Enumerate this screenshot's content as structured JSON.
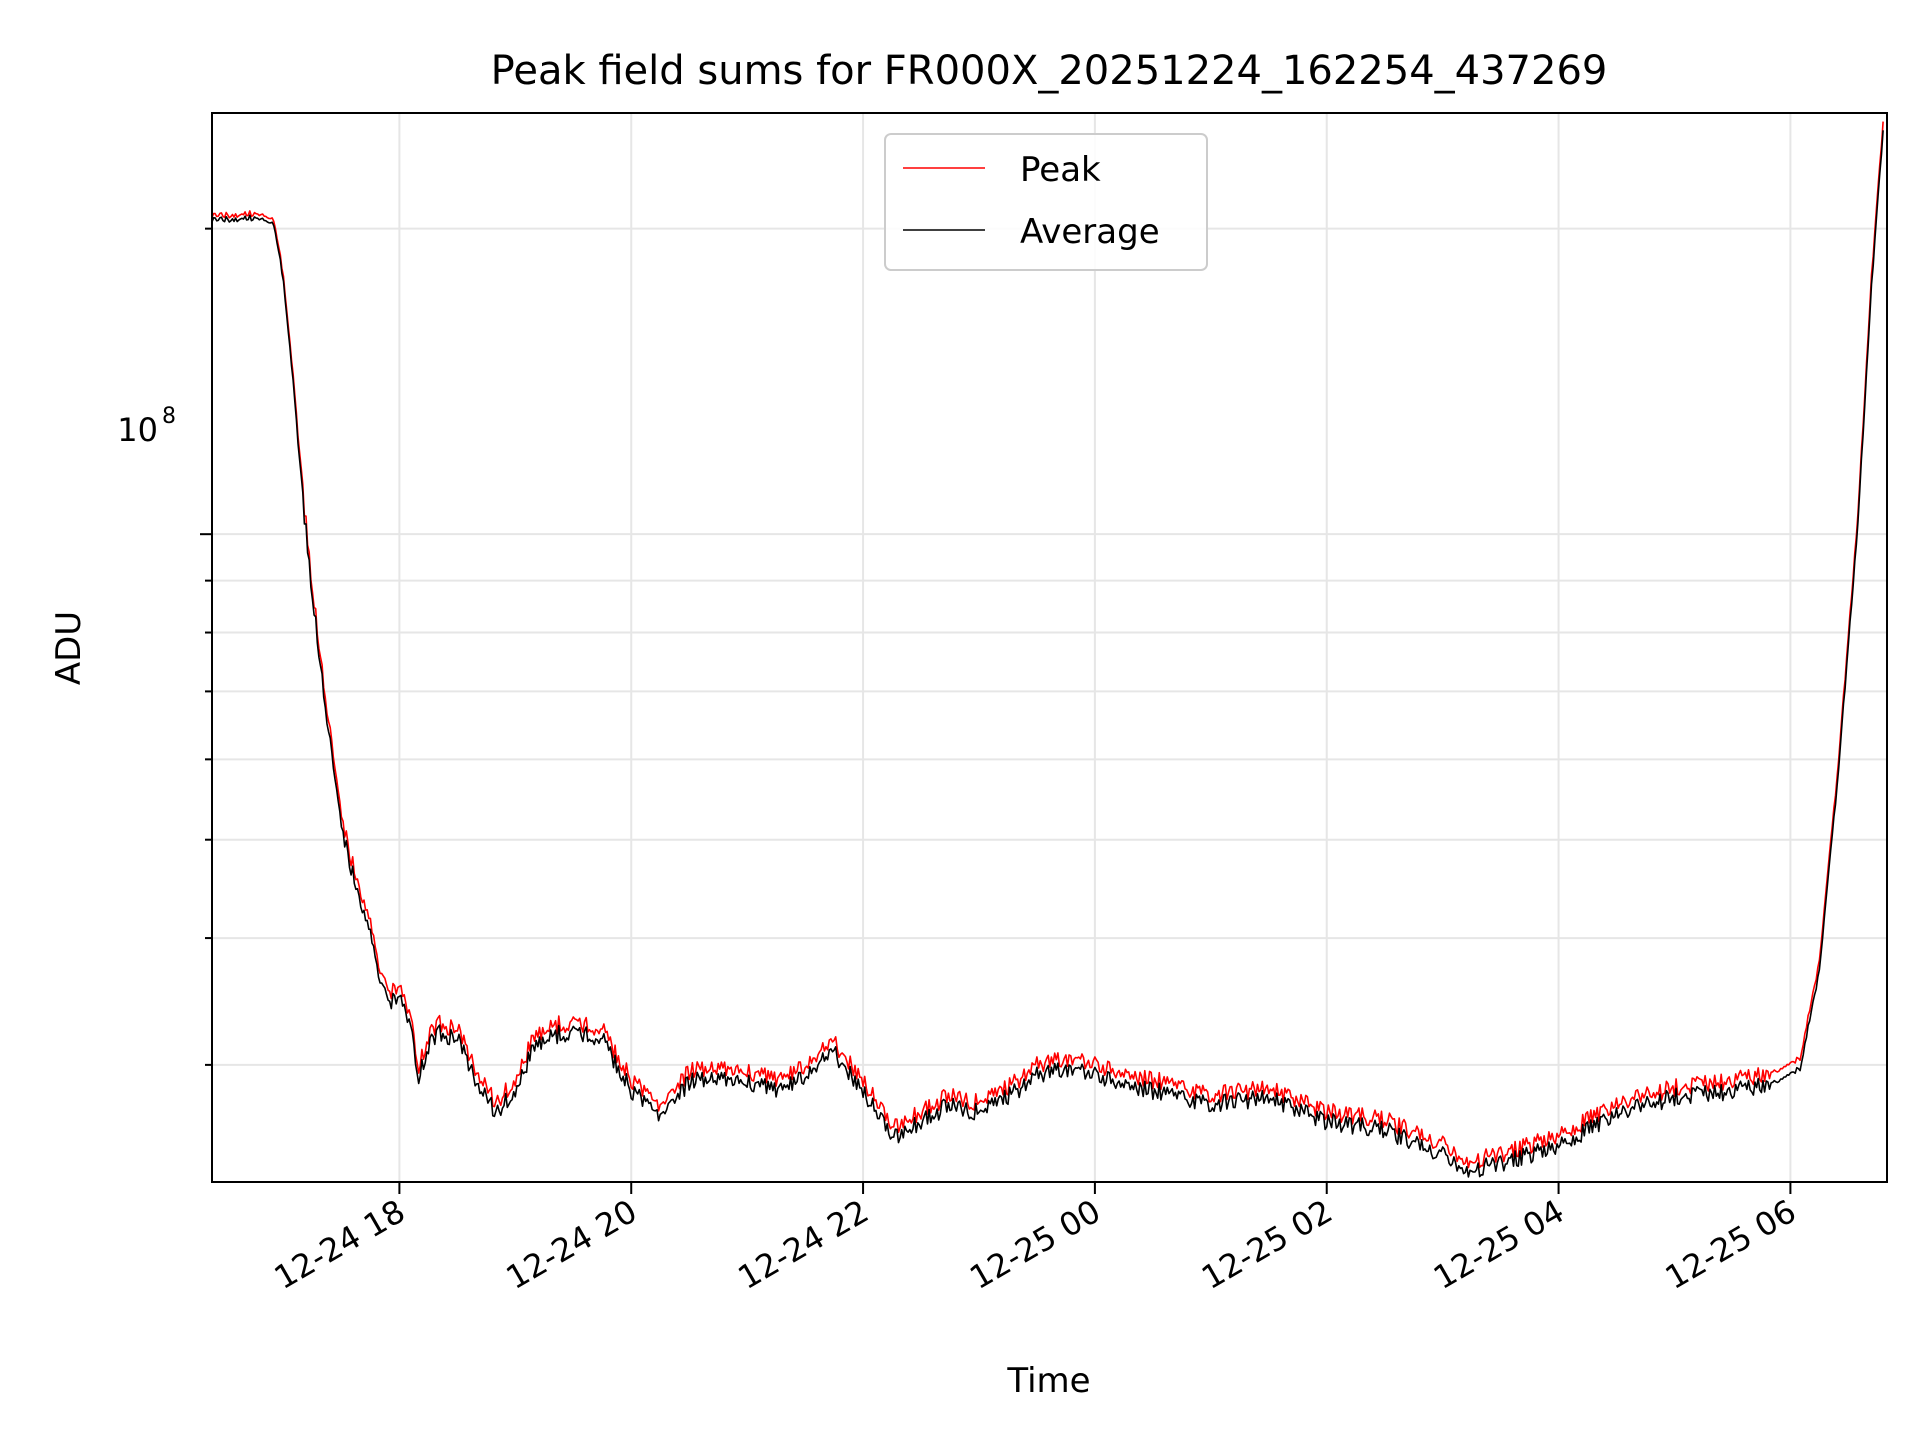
{
  "chart_data": {
    "type": "line",
    "title": "Peak field sums for FR000X_20251224_162254_437269",
    "xlabel": "Time",
    "ylabel": "ADU",
    "y_scale": "log",
    "y_tick_label": "10^8",
    "y_tick_label_base": "10",
    "y_tick_label_exp": "8",
    "grid": true,
    "legend_position": "top-center",
    "x_ticks": [
      "12-24 18",
      "12-24 20",
      "12-24 22",
      "12-25 00",
      "12-25 02",
      "12-25 04",
      "12-25 06"
    ],
    "x_range": [
      "2025-12-24 16:23",
      "2025-12-25 06:50"
    ],
    "y_range": [
      23000000,
      260000000
    ],
    "series": [
      {
        "name": "Peak",
        "color": "#ff0000",
        "points": [
          [
            "2025-12-24 16:23",
            206000000.0
          ],
          [
            "2025-12-24 16:45",
            207000000.0
          ],
          [
            "2025-12-24 16:55",
            204000000.0
          ],
          [
            "2025-12-24 17:00",
            180000000.0
          ],
          [
            "2025-12-24 17:05",
            143000000.0
          ],
          [
            "2025-12-24 17:10",
            110000000.0
          ],
          [
            "2025-12-24 17:15",
            88000000.0
          ],
          [
            "2025-12-24 17:20",
            74000000.0
          ],
          [
            "2025-12-24 17:25",
            62000000.0
          ],
          [
            "2025-12-24 17:30",
            53000000.0
          ],
          [
            "2025-12-24 17:35",
            48000000.0
          ],
          [
            "2025-12-24 17:40",
            44500000.0
          ],
          [
            "2025-12-24 17:45",
            41000000.0
          ],
          [
            "2025-12-24 17:50",
            37000000.0
          ],
          [
            "2025-12-24 17:55",
            35500000.0
          ],
          [
            "2025-12-24 18:00",
            36000000.0
          ],
          [
            "2025-12-24 18:05",
            34000000.0
          ],
          [
            "2025-12-24 18:10",
            30000000.0
          ],
          [
            "2025-12-24 18:15",
            32000000.0
          ],
          [
            "2025-12-24 18:20",
            33000000.0
          ],
          [
            "2025-12-24 18:30",
            32500000.0
          ],
          [
            "2025-12-24 18:40",
            29500000.0
          ],
          [
            "2025-12-24 18:50",
            27500000.0
          ],
          [
            "2025-12-24 19:00",
            29000000.0
          ],
          [
            "2025-12-24 19:10",
            32000000.0
          ],
          [
            "2025-12-24 19:20",
            32800000.0
          ],
          [
            "2025-12-24 19:30",
            33000000.0
          ],
          [
            "2025-12-24 19:45",
            32500000.0
          ],
          [
            "2025-12-24 20:00",
            29000000.0
          ],
          [
            "2025-12-24 20:15",
            27500000.0
          ],
          [
            "2025-12-24 20:30",
            29500000.0
          ],
          [
            "2025-12-24 20:45",
            30000000.0
          ],
          [
            "2025-12-24 21:00",
            29500000.0
          ],
          [
            "2025-12-24 21:15",
            29000000.0
          ],
          [
            "2025-12-24 21:30",
            30000000.0
          ],
          [
            "2025-12-24 21:45",
            31500000.0
          ],
          [
            "2025-12-24 22:00",
            29000000.0
          ],
          [
            "2025-12-24 22:15",
            26000000.0
          ],
          [
            "2025-12-24 22:30",
            27000000.0
          ],
          [
            "2025-12-24 22:45",
            28000000.0
          ],
          [
            "2025-12-24 23:00",
            27500000.0
          ],
          [
            "2025-12-24 23:15",
            28500000.0
          ],
          [
            "2025-12-24 23:30",
            30000000.0
          ],
          [
            "2025-12-24 23:45",
            30500000.0
          ],
          [
            "2025-12-25 00:00",
            30000000.0
          ],
          [
            "2025-12-25 00:30",
            29000000.0
          ],
          [
            "2025-12-25 01:00",
            28000000.0
          ],
          [
            "2025-12-25 01:30",
            28500000.0
          ],
          [
            "2025-12-25 02:00",
            27000000.0
          ],
          [
            "2025-12-25 02:30",
            26500000.0
          ],
          [
            "2025-12-25 03:00",
            25000000.0
          ],
          [
            "2025-12-25 03:10",
            24000000.0
          ],
          [
            "2025-12-25 03:30",
            24500000.0
          ],
          [
            "2025-12-25 04:00",
            25500000.0
          ],
          [
            "2025-12-25 04:30",
            27500000.0
          ],
          [
            "2025-12-25 05:00",
            28500000.0
          ],
          [
            "2025-12-25 05:30",
            29000000.0
          ],
          [
            "2025-12-25 05:50",
            29500000.0
          ],
          [
            "2025-12-25 06:05",
            30500000.0
          ],
          [
            "2025-12-25 06:15",
            38000000.0
          ],
          [
            "2025-12-25 06:25",
            60000000.0
          ],
          [
            "2025-12-25 06:35",
            105000000.0
          ],
          [
            "2025-12-25 06:42",
            180000000.0
          ],
          [
            "2025-12-25 06:48",
            255000000.0
          ]
        ]
      },
      {
        "name": "Average",
        "color": "#000000",
        "points": [
          [
            "2025-12-24 16:23",
            204000000.0
          ],
          [
            "2025-12-24 16:45",
            205000000.0
          ],
          [
            "2025-12-24 16:55",
            202000000.0
          ],
          [
            "2025-12-24 17:00",
            178000000.0
          ],
          [
            "2025-12-24 17:05",
            141000000.0
          ],
          [
            "2025-12-24 17:10",
            108000000.0
          ],
          [
            "2025-12-24 17:15",
            86500000.0
          ],
          [
            "2025-12-24 17:20",
            72500000.0
          ],
          [
            "2025-12-24 17:25",
            60500000.0
          ],
          [
            "2025-12-24 17:30",
            51800000.0
          ],
          [
            "2025-12-24 17:35",
            47000000.0
          ],
          [
            "2025-12-24 17:40",
            43500000.0
          ],
          [
            "2025-12-24 17:45",
            40000000.0
          ],
          [
            "2025-12-24 17:50",
            36200000.0
          ],
          [
            "2025-12-24 17:55",
            34700000.0
          ],
          [
            "2025-12-24 18:00",
            35200000.0
          ],
          [
            "2025-12-24 18:05",
            33300000.0
          ],
          [
            "2025-12-24 18:10",
            29300000.0
          ],
          [
            "2025-12-24 18:15",
            31300000.0
          ],
          [
            "2025-12-24 18:20",
            32300000.0
          ],
          [
            "2025-12-24 18:30",
            31800000.0
          ],
          [
            "2025-12-24 18:40",
            28800000.0
          ],
          [
            "2025-12-24 18:50",
            26900000.0
          ],
          [
            "2025-12-24 19:00",
            28300000.0
          ],
          [
            "2025-12-24 19:10",
            31300000.0
          ],
          [
            "2025-12-24 19:20",
            32100000.0
          ],
          [
            "2025-12-24 19:30",
            32300000.0
          ],
          [
            "2025-12-24 19:45",
            31800000.0
          ],
          [
            "2025-12-24 20:00",
            28300000.0
          ],
          [
            "2025-12-24 20:15",
            26900000.0
          ],
          [
            "2025-12-24 20:30",
            28800000.0
          ],
          [
            "2025-12-24 20:45",
            29300000.0
          ],
          [
            "2025-12-24 21:00",
            28800000.0
          ],
          [
            "2025-12-24 21:15",
            28300000.0
          ],
          [
            "2025-12-24 21:30",
            29300000.0
          ],
          [
            "2025-12-24 21:45",
            30800000.0
          ],
          [
            "2025-12-24 22:00",
            28300000.0
          ],
          [
            "2025-12-24 22:15",
            25400000.0
          ],
          [
            "2025-12-24 22:30",
            26400000.0
          ],
          [
            "2025-12-24 22:45",
            27400000.0
          ],
          [
            "2025-12-24 23:00",
            26900000.0
          ],
          [
            "2025-12-24 23:15",
            27900000.0
          ],
          [
            "2025-12-24 23:30",
            29300000.0
          ],
          [
            "2025-12-24 23:45",
            29800000.0
          ],
          [
            "2025-12-25 00:00",
            29300000.0
          ],
          [
            "2025-12-25 00:30",
            28300000.0
          ],
          [
            "2025-12-25 01:00",
            27400000.0
          ],
          [
            "2025-12-25 01:30",
            27900000.0
          ],
          [
            "2025-12-25 02:00",
            26400000.0
          ],
          [
            "2025-12-25 02:30",
            25900000.0
          ],
          [
            "2025-12-25 03:00",
            24400000.0
          ],
          [
            "2025-12-25 03:10",
            23500000.0
          ],
          [
            "2025-12-25 03:30",
            24000000.0
          ],
          [
            "2025-12-25 04:00",
            24900000.0
          ],
          [
            "2025-12-25 04:30",
            26900000.0
          ],
          [
            "2025-12-25 05:00",
            27900000.0
          ],
          [
            "2025-12-25 05:30",
            28300000.0
          ],
          [
            "2025-12-25 05:50",
            28800000.0
          ],
          [
            "2025-12-25 06:05",
            29800000.0
          ],
          [
            "2025-12-25 06:15",
            37200000.0
          ],
          [
            "2025-12-25 06:25",
            58800000.0
          ],
          [
            "2025-12-25 06:35",
            103000000.0
          ],
          [
            "2025-12-25 06:42",
            176000000.0
          ],
          [
            "2025-12-25 06:48",
            250000000.0
          ]
        ]
      }
    ]
  }
}
